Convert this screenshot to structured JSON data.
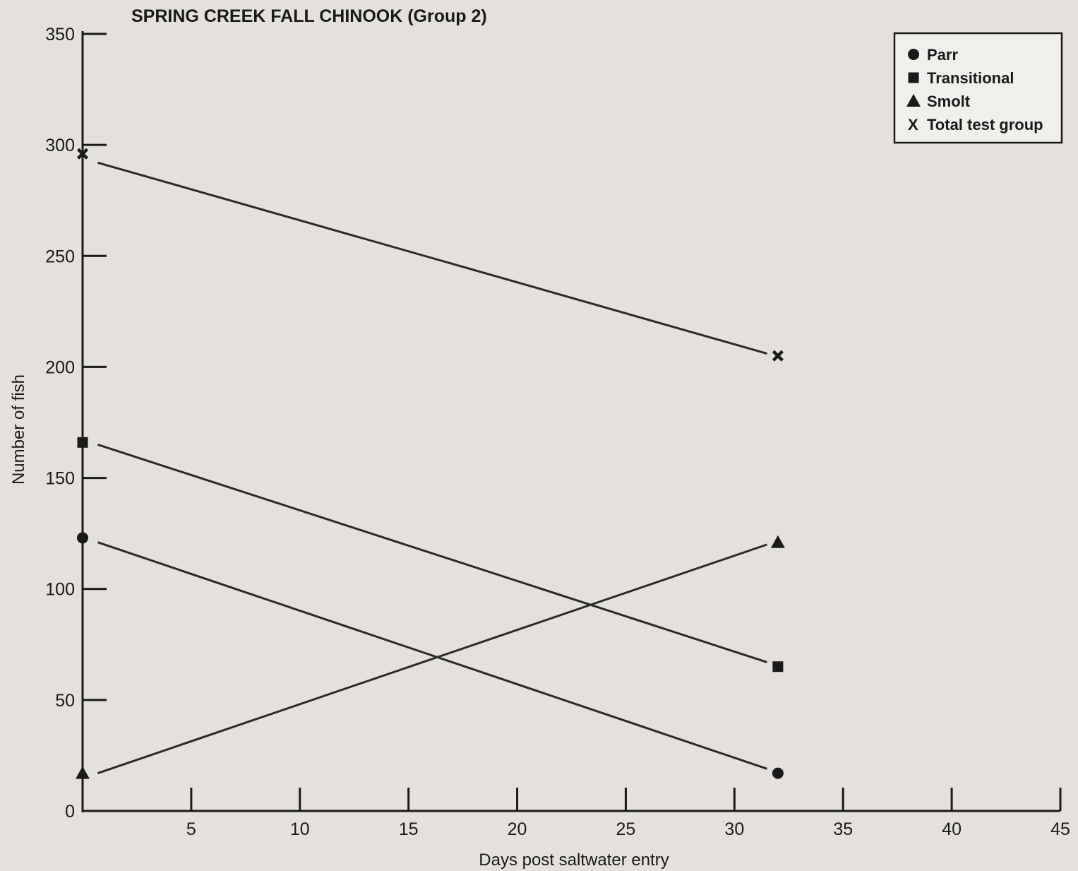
{
  "chart_data": {
    "type": "line",
    "title": "SPRING CREEK FALL CHINOOK  (Group 2)",
    "xlabel": "Days post saltwater entry",
    "ylabel": "Number of fish",
    "xlim": [
      0,
      45
    ],
    "ylim": [
      0,
      350
    ],
    "x_ticks": [
      5,
      10,
      15,
      20,
      25,
      30,
      35,
      40,
      45
    ],
    "y_ticks": [
      0,
      50,
      100,
      150,
      200,
      250,
      300,
      350
    ],
    "grid": false,
    "legend_position": "top-right",
    "series": [
      {
        "name": "Parr",
        "marker": "circle",
        "points": [
          {
            "x": 0,
            "y": 123
          },
          {
            "x": 32,
            "y": 17
          }
        ],
        "fit_line": [
          {
            "x": 0.7,
            "y": 121
          },
          {
            "x": 31.5,
            "y": 19
          }
        ]
      },
      {
        "name": "Transitional",
        "marker": "square",
        "points": [
          {
            "x": 0,
            "y": 166
          },
          {
            "x": 32,
            "y": 65
          }
        ],
        "fit_line": [
          {
            "x": 0.7,
            "y": 165
          },
          {
            "x": 31.5,
            "y": 67
          }
        ]
      },
      {
        "name": "Smolt",
        "marker": "triangle",
        "points": [
          {
            "x": 0,
            "y": 17
          },
          {
            "x": 32,
            "y": 121
          }
        ],
        "fit_line": [
          {
            "x": 0.7,
            "y": 17
          },
          {
            "x": 31.5,
            "y": 120
          }
        ]
      },
      {
        "name": "Total test group",
        "marker": "x",
        "points": [
          {
            "x": 0,
            "y": 296
          },
          {
            "x": 32,
            "y": 205
          }
        ],
        "fit_line": [
          {
            "x": 0.7,
            "y": 292
          },
          {
            "x": 31.5,
            "y": 206
          }
        ]
      }
    ]
  }
}
